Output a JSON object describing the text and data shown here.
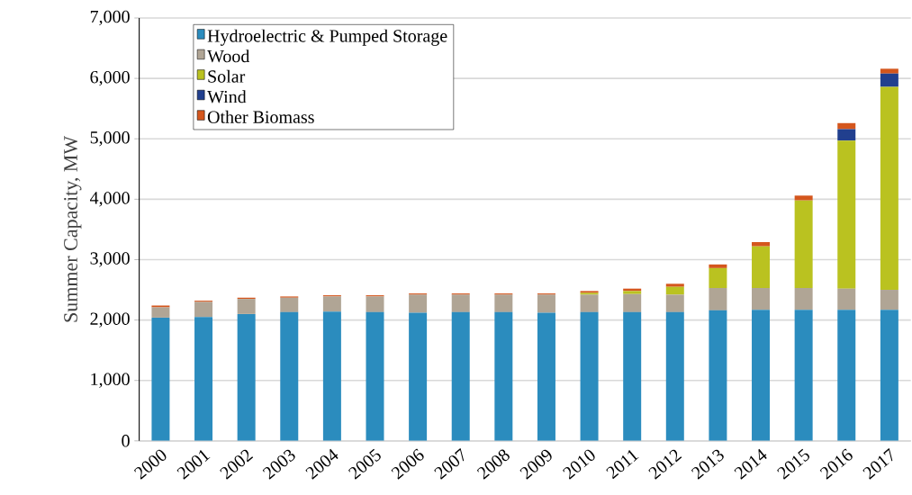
{
  "chart_data": {
    "type": "bar",
    "stacked": true,
    "ylabel": "Summer Capacity, MW",
    "categories": [
      "2000",
      "2001",
      "2002",
      "2003",
      "2004",
      "2005",
      "2006",
      "2007",
      "2008",
      "2009",
      "2010",
      "2011",
      "2012",
      "2013",
      "2014",
      "2015",
      "2016",
      "2017"
    ],
    "series": [
      {
        "name": "Hydroelectric & Pumped Storage",
        "color": "#2b8cbe",
        "values": [
          2040,
          2050,
          2100,
          2130,
          2140,
          2130,
          2120,
          2130,
          2130,
          2120,
          2130,
          2130,
          2130,
          2160,
          2170,
          2170,
          2170,
          2170
        ]
      },
      {
        "name": "Wood",
        "color": "#b0a595",
        "values": [
          170,
          250,
          250,
          240,
          250,
          260,
          300,
          290,
          290,
          300,
          290,
          300,
          290,
          370,
          360,
          360,
          350,
          330
        ]
      },
      {
        "name": "Solar",
        "color": "#bac220",
        "values": [
          0,
          0,
          0,
          0,
          0,
          0,
          0,
          0,
          0,
          0,
          30,
          50,
          130,
          330,
          690,
          1450,
          2450,
          3360
        ]
      },
      {
        "name": "Wind",
        "color": "#213f8e",
        "values": [
          0,
          0,
          0,
          0,
          0,
          0,
          0,
          0,
          0,
          0,
          0,
          0,
          0,
          0,
          0,
          0,
          190,
          220
        ]
      },
      {
        "name": "Other Biomass",
        "color": "#d4561d",
        "values": [
          30,
          20,
          20,
          20,
          20,
          20,
          20,
          20,
          20,
          20,
          30,
          40,
          50,
          60,
          70,
          80,
          100,
          80
        ]
      }
    ],
    "ylim": [
      0,
      7000
    ],
    "yticks": [
      0,
      {
        "value": 1000,
        "label": "1,000"
      },
      {
        "value": 2000,
        "label": "2,000"
      },
      {
        "value": 3000,
        "label": "3,000"
      },
      {
        "value": 4000,
        "label": "4,000"
      },
      {
        "value": 5000,
        "label": "5,000"
      },
      {
        "value": 6000,
        "label": "6,000"
      },
      {
        "value": 7000,
        "label": "7,000"
      }
    ],
    "grid": "y",
    "legend": "top left"
  }
}
